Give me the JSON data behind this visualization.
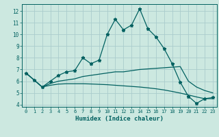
{
  "xlabel": "Humidex (Indice chaleur)",
  "background_color": "#cce8e0",
  "grid_color": "#aacccc",
  "line_color": "#006060",
  "x_values": [
    0,
    1,
    2,
    3,
    4,
    5,
    6,
    7,
    8,
    9,
    10,
    11,
    12,
    13,
    14,
    15,
    16,
    17,
    18,
    19,
    20,
    21,
    22,
    23
  ],
  "ylim": [
    3.8,
    12.6
  ],
  "xlim": [
    -0.5,
    23.5
  ],
  "yticks": [
    4,
    5,
    6,
    7,
    8,
    9,
    10,
    11,
    12
  ],
  "xticks": [
    0,
    1,
    2,
    3,
    4,
    5,
    6,
    7,
    8,
    9,
    10,
    11,
    12,
    13,
    14,
    15,
    16,
    17,
    18,
    19,
    20,
    21,
    22,
    23
  ],
  "series": [
    [
      6.7,
      6.1,
      5.5,
      6.0,
      6.5,
      6.8,
      6.9,
      8.0,
      7.5,
      7.8,
      10.0,
      11.3,
      10.4,
      10.8,
      12.2,
      10.5,
      9.8,
      8.8,
      7.5,
      5.9,
      4.7,
      4.1,
      4.5,
      4.6
    ],
    [
      6.7,
      6.1,
      5.5,
      5.8,
      6.0,
      6.1,
      6.2,
      6.4,
      6.5,
      6.6,
      6.7,
      6.8,
      6.8,
      6.9,
      7.0,
      7.05,
      7.1,
      7.15,
      7.2,
      7.25,
      6.0,
      5.5,
      5.2,
      5.0
    ],
    [
      6.7,
      6.1,
      5.5,
      5.65,
      5.75,
      5.78,
      5.78,
      5.78,
      5.76,
      5.73,
      5.7,
      5.65,
      5.6,
      5.55,
      5.5,
      5.43,
      5.35,
      5.25,
      5.12,
      4.98,
      4.82,
      4.65,
      4.5,
      4.5
    ]
  ]
}
